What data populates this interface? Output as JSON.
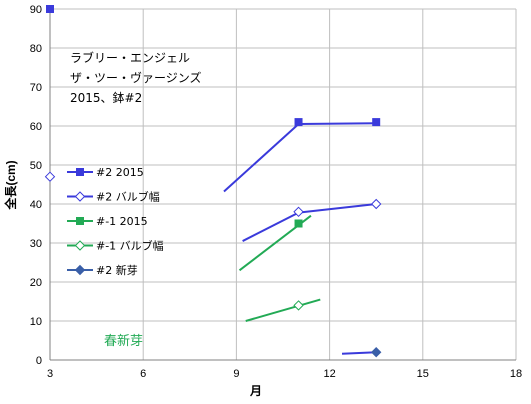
{
  "chart_data": {
    "type": "line",
    "annotation_lines": [
      "ラブリー・エンジェル",
      "ザ・ツー・ヴァージンズ",
      "2015、鉢#2"
    ],
    "xlabel": "月",
    "ylabel": "全長(cm)",
    "xlim": [
      3,
      18
    ],
    "ylim": [
      0,
      90
    ],
    "x_ticks": [
      3,
      6,
      9,
      12,
      15,
      18
    ],
    "y_ticks": [
      0,
      10,
      20,
      30,
      40,
      50,
      60,
      70,
      80,
      90
    ],
    "grid": true,
    "legend_position": "left",
    "note": "春新芽",
    "colors": {
      "blue": "#3a3adb",
      "green": "#22aa55",
      "gray": "#808080"
    },
    "series": [
      {
        "name": "#2 2015",
        "color": "#3a3adb",
        "marker": "square",
        "points": [
          [
            3,
            90
          ],
          [
            11,
            61
          ],
          [
            13.5,
            61
          ]
        ],
        "segments": [
          [
            [
              11,
              60.5
            ],
            [
              13.5,
              60.7
            ]
          ]
        ]
      },
      {
        "name": "#2 バルブ幅",
        "color": "#3a3adb",
        "marker": "diamond-open",
        "points": [
          [
            3,
            47
          ],
          [
            11,
            38
          ],
          [
            13.5,
            40
          ]
        ],
        "segments": [
          [
            [
              11,
              37.8
            ],
            [
              13.5,
              40
            ]
          ]
        ]
      },
      {
        "name": "#-1 2015",
        "color": "#22aa55",
        "marker": "square",
        "points": [
          [
            11,
            35
          ]
        ],
        "segments": []
      },
      {
        "name": "#-1 バルブ幅",
        "color": "#22aa55",
        "marker": "diamond-open",
        "points": [
          [
            11,
            14
          ]
        ],
        "segments": []
      },
      {
        "name": "#2 新芽",
        "color": "#3a5fa8",
        "marker": "diamond",
        "points": [
          [
            13.5,
            2
          ]
        ],
        "segments": []
      }
    ],
    "trend_lines": [
      {
        "color": "#3a3adb",
        "from": [
          8.6,
          43.2
        ],
        "to": [
          11,
          60.5
        ]
      },
      {
        "color": "#3a3adb",
        "from": [
          9.2,
          30.5
        ],
        "to": [
          11,
          37.8
        ]
      },
      {
        "color": "#22aa55",
        "from": [
          9.1,
          23
        ],
        "to": [
          11.4,
          37
        ]
      },
      {
        "color": "#22aa55",
        "from": [
          9.3,
          10
        ],
        "to": [
          11.7,
          15.5
        ]
      },
      {
        "color": "#3a3adb",
        "from": [
          12.4,
          1.6
        ],
        "to": [
          13.5,
          2
        ]
      }
    ]
  }
}
